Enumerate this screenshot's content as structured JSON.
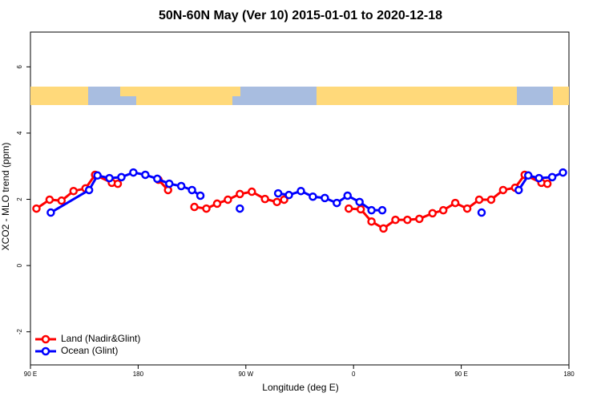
{
  "chart_data": {
    "type": "line",
    "title": "50N-60N May (Ver 10)   2015-01-01 to 2020-12-18",
    "x_label": "Longitude (deg E)",
    "y_label": "XCO2 - MLO trend (ppm)",
    "xlim": [
      90,
      540
    ],
    "ylim": [
      -3,
      7.05
    ],
    "xticks": [
      {
        "value": 90,
        "label": "90 E"
      },
      180,
      {
        "value": 270,
        "label": "90 W"
      },
      {
        "value": 360,
        "label": "0"
      },
      {
        "value": 450,
        "label": "90 E"
      },
      {
        "value": 540,
        "label": "180"
      }
    ],
    "yticks": [
      -2,
      0,
      2,
      4,
      6
    ],
    "legend": "bottom-left",
    "series": [
      {
        "name": "Land (Nadir&Glint)",
        "color": "#ff0000",
        "x": [
          95,
          106,
          116,
          126,
          136,
          144,
          158,
          163,
          null,
          197,
          205,
          null,
          227,
          237,
          246,
          255,
          265,
          275,
          286,
          296,
          302,
          null,
          356,
          366,
          375,
          385,
          395,
          405,
          415,
          426,
          435,
          445,
          455,
          465,
          475,
          485,
          495,
          503,
          517,
          522
        ],
        "values": [
          1.72,
          1.99,
          1.96,
          2.25,
          2.33,
          2.74,
          2.5,
          2.47,
          null,
          2.59,
          2.28,
          null,
          1.77,
          1.72,
          1.87,
          1.99,
          2.16,
          2.23,
          2.01,
          1.92,
          1.99,
          null,
          1.72,
          1.7,
          1.33,
          1.12,
          1.38,
          1.38,
          1.41,
          1.58,
          1.67,
          1.89,
          1.72,
          1.99,
          1.99,
          2.28,
          2.35,
          2.74,
          2.5,
          2.47
        ]
      },
      {
        "name": "Ocean (Glint)",
        "color": "#0000ff",
        "x": [
          107,
          139,
          146,
          156,
          166,
          176,
          186,
          196,
          206,
          216,
          225,
          232,
          null,
          265,
          null,
          297,
          306,
          316,
          326,
          336,
          346,
          355,
          365,
          375,
          384,
          null,
          467,
          null,
          498,
          506,
          515,
          526,
          535
        ],
        "values": [
          1.6,
          2.28,
          2.72,
          2.64,
          2.67,
          2.81,
          2.74,
          2.62,
          2.47,
          2.4,
          2.28,
          2.11,
          null,
          1.72,
          null,
          2.18,
          2.13,
          2.25,
          2.08,
          2.04,
          1.89,
          2.11,
          1.92,
          1.67,
          1.67,
          null,
          1.6,
          null,
          2.28,
          2.72,
          2.64,
          2.67,
          2.81
        ]
      }
    ]
  }
}
